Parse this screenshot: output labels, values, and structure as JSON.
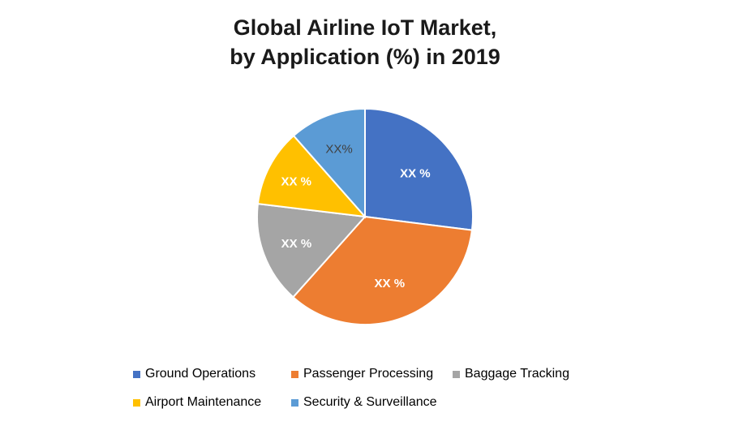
{
  "title_line1": "Global Airline IoT Market,",
  "title_line2": "by Application (%) in 2019",
  "chart_data": {
    "type": "pie",
    "title": "Global Airline IoT Market, by Application (%) in 2019",
    "legend_position": "bottom",
    "slices": [
      {
        "name": "Ground Operations",
        "value": 27,
        "label": "XX %",
        "color": "#4472C4",
        "label_color": "#ffffff"
      },
      {
        "name": "Passenger Processing",
        "value": 34.6,
        "label": "XX %",
        "color": "#ED7D31",
        "label_color": "#ffffff"
      },
      {
        "name": "Baggage Tracking",
        "value": 15.3,
        "label": "XX %",
        "color": "#A5A5A5",
        "label_color": "#ffffff"
      },
      {
        "name": "Airport Maintenance",
        "value": 11.6,
        "label": "XX %",
        "color": "#FFC000",
        "label_color": "#ffffff"
      },
      {
        "name": "Security & Surveillance",
        "value": 11.5,
        "label": "XX%",
        "color": "#5B9BD5",
        "label_color": "#404040"
      }
    ]
  }
}
